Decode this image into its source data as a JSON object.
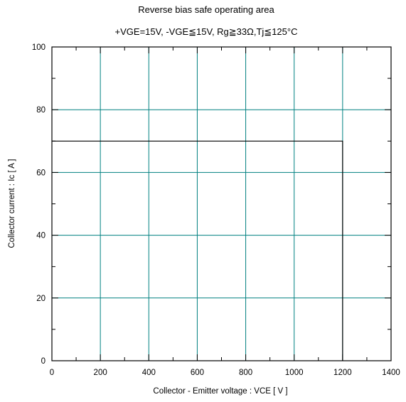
{
  "chart_data": {
    "type": "line",
    "title": "Reverse bias safe operating area",
    "subtitle": "+VGE=15V, -VGE≦15V, Rg≧33Ω,Tj≦125°C",
    "xlabel": "Collector - Emitter voltage  :  VCE  [ V ]",
    "ylabel": "Collector current  : Ic  [ A ]",
    "xlim": [
      0,
      1400
    ],
    "ylim": [
      0,
      100
    ],
    "x_ticks": [
      0,
      200,
      400,
      600,
      800,
      1000,
      1200,
      1400
    ],
    "y_ticks": [
      0,
      20,
      40,
      60,
      80,
      100
    ],
    "x_tick_labels": [
      "0",
      "200",
      "400",
      "600",
      "800",
      "1000",
      "1200",
      "1400"
    ],
    "y_tick_labels": [
      "0",
      "20",
      "40",
      "60",
      "80",
      "100"
    ],
    "grid": true,
    "grid_color": "#008080",
    "series": [
      {
        "color": "#000000",
        "x": [
          0,
          1200,
          1200
        ],
        "y": [
          70,
          70,
          0
        ]
      }
    ]
  }
}
